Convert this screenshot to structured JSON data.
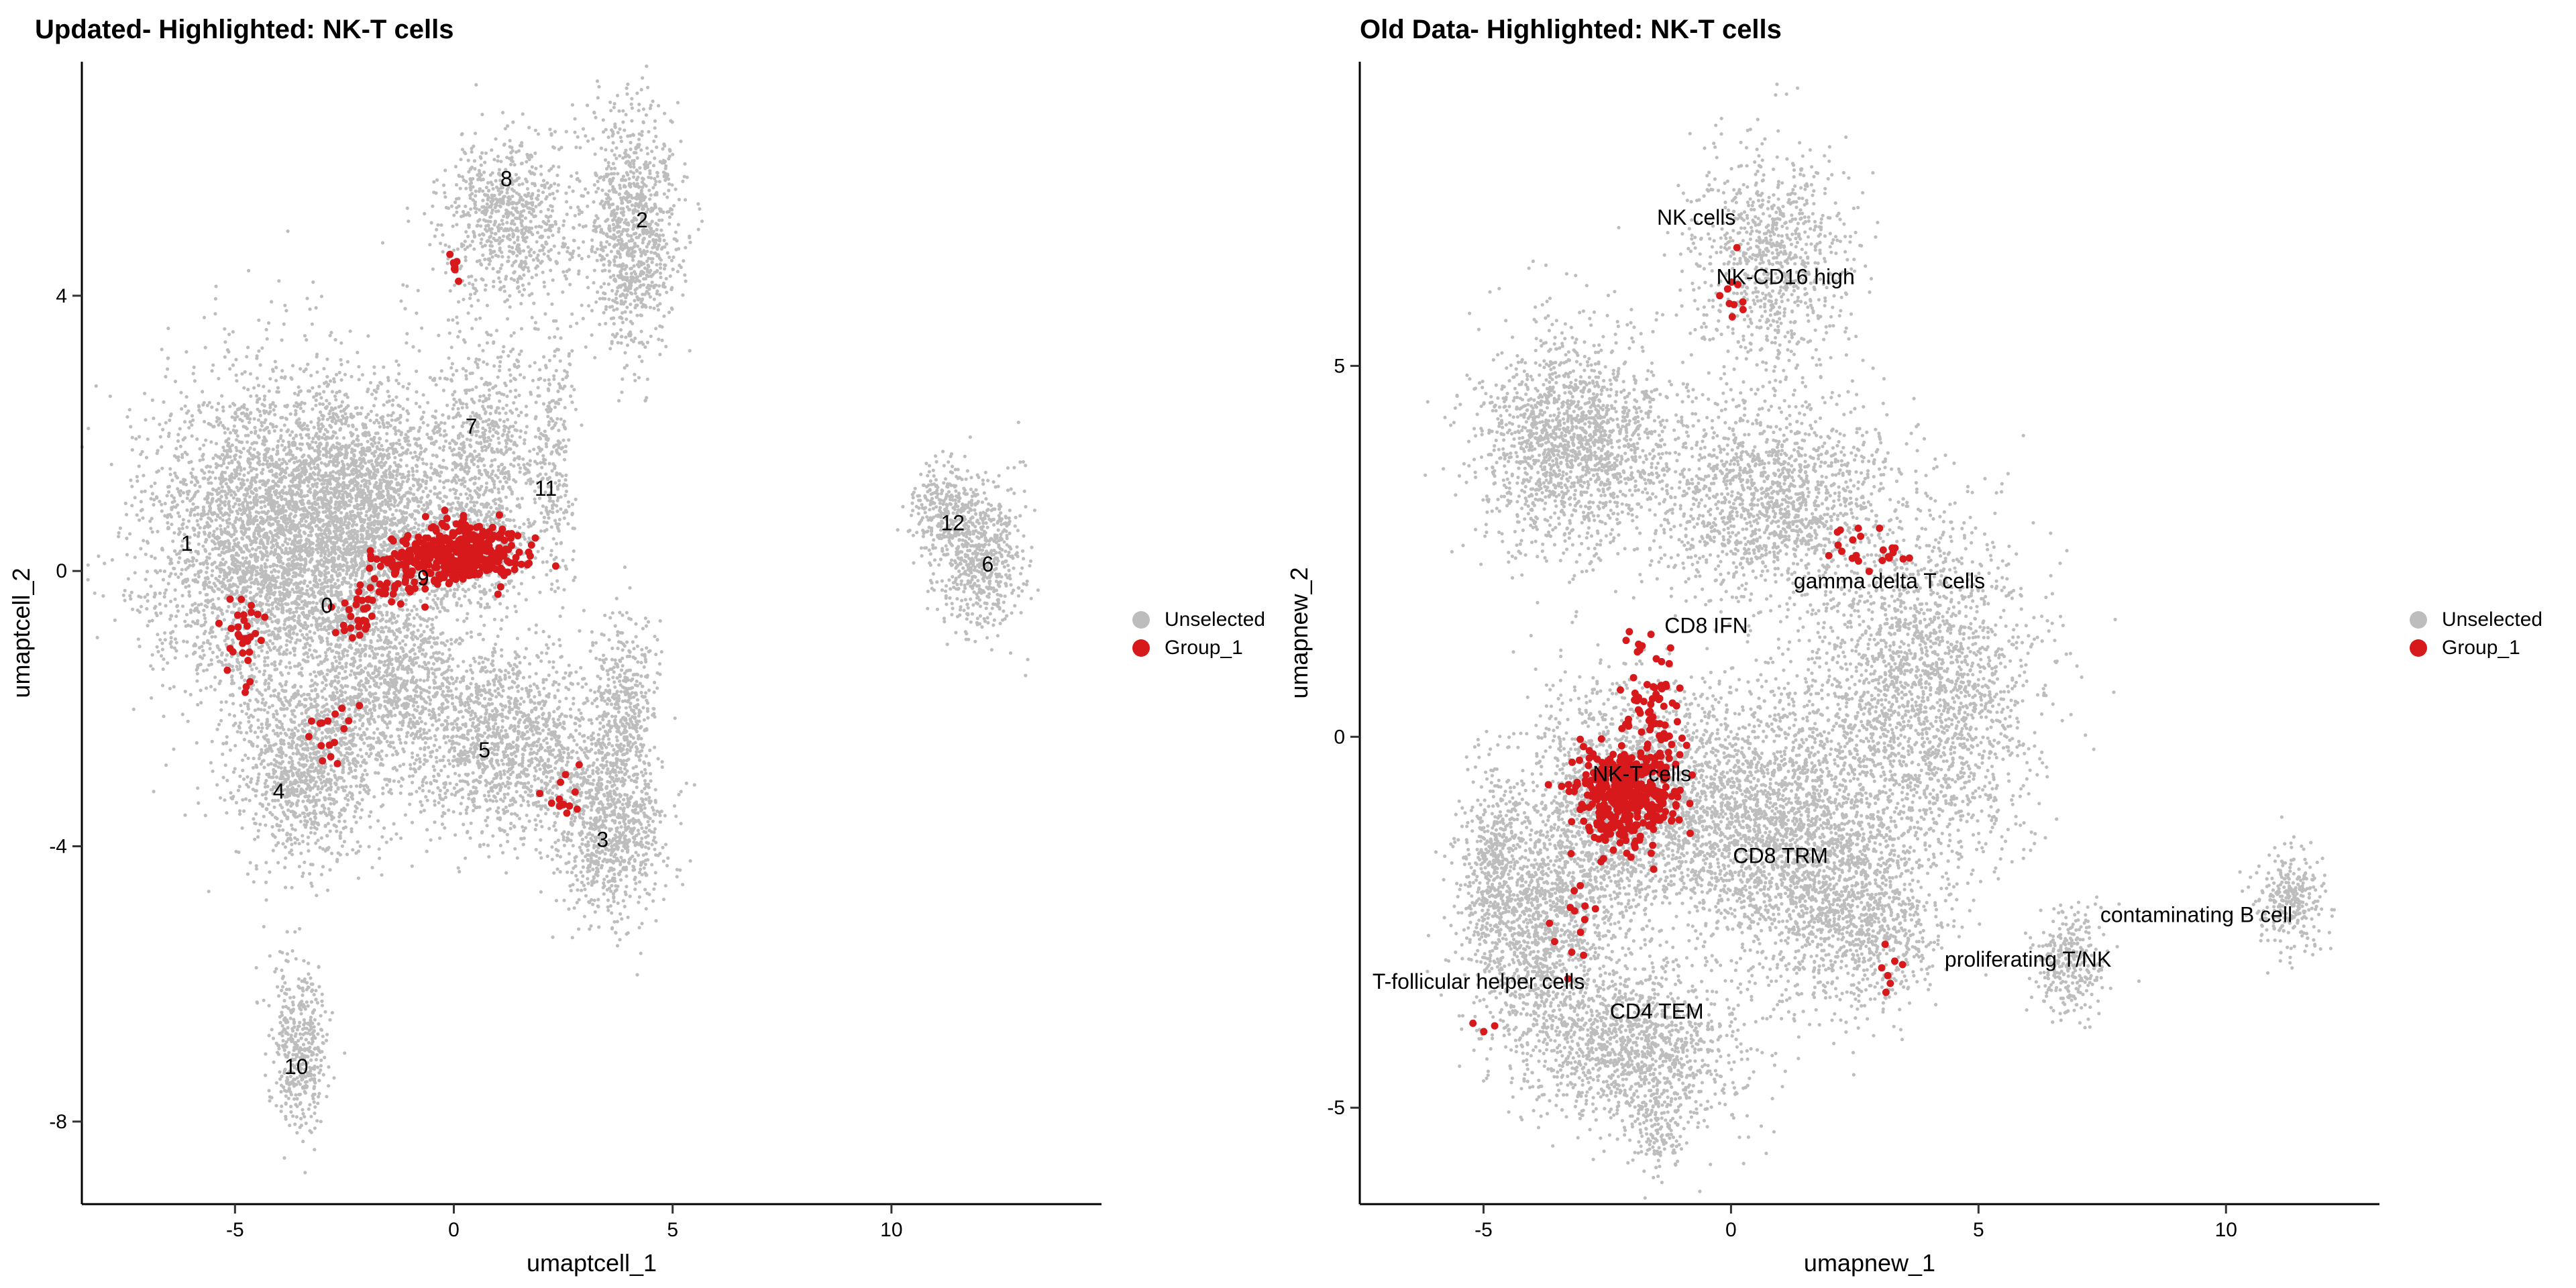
{
  "colors": {
    "unselected": "#bdbdbd",
    "group": "#d7191c",
    "axis": "#000000"
  },
  "chart_data": [
    {
      "type": "scatter",
      "title": "Updated- Highlighted: NK-T cells",
      "xlabel": "umaptcell_1",
      "ylabel": "umaptcell_2",
      "xlim": [
        -8.5,
        14.8
      ],
      "ylim": [
        -9.2,
        7.4
      ],
      "xticks": [
        -5,
        0,
        5,
        10
      ],
      "yticks": [
        -8,
        -4,
        0,
        4
      ],
      "legend": {
        "placement": "right",
        "entries": [
          "Unselected",
          "Group_1"
        ]
      },
      "grid": false,
      "cluster_labels": [
        {
          "text": "0",
          "x": -2.9,
          "y": -0.5
        },
        {
          "text": "1",
          "x": -6.1,
          "y": 0.4
        },
        {
          "text": "2",
          "x": 4.3,
          "y": 5.1
        },
        {
          "text": "3",
          "x": 3.4,
          "y": -3.9
        },
        {
          "text": "4",
          "x": -4.0,
          "y": -3.2
        },
        {
          "text": "5",
          "x": 0.7,
          "y": -2.6
        },
        {
          "text": "6",
          "x": 12.2,
          "y": 0.1
        },
        {
          "text": "7",
          "x": 0.4,
          "y": 2.1
        },
        {
          "text": "8",
          "x": 1.2,
          "y": 5.7
        },
        {
          "text": "9",
          "x": -0.7,
          "y": -0.1
        },
        {
          "text": "10",
          "x": -3.6,
          "y": -7.2
        },
        {
          "text": "11",
          "x": 2.1,
          "y": 1.2
        },
        {
          "text": "12",
          "x": 11.4,
          "y": 0.7
        }
      ],
      "unselected_regions": [
        {
          "cx": -4.2,
          "cy": 0.4,
          "sx": 1.8,
          "sy": 1.6,
          "n": 3600
        },
        {
          "cx": -2.0,
          "cy": 0.9,
          "sx": 1.4,
          "sy": 1.2,
          "n": 2000
        },
        {
          "cx": -3.4,
          "cy": -2.9,
          "sx": 1.1,
          "sy": 0.9,
          "n": 1100
        },
        {
          "cx": -1.5,
          "cy": -1.6,
          "sx": 1.2,
          "sy": 0.8,
          "n": 900
        },
        {
          "cx": 1.2,
          "cy": -2.5,
          "sx": 1.6,
          "sy": 0.9,
          "n": 1500
        },
        {
          "cx": 3.6,
          "cy": -3.7,
          "sx": 0.8,
          "sy": 0.9,
          "n": 900
        },
        {
          "cx": 3.9,
          "cy": -1.8,
          "sx": 0.5,
          "sy": 0.8,
          "n": 350
        },
        {
          "cx": 0.8,
          "cy": 1.9,
          "sx": 0.9,
          "sy": 1.1,
          "n": 650
        },
        {
          "cx": 1.3,
          "cy": 5.1,
          "sx": 1.0,
          "sy": 0.8,
          "n": 800
        },
        {
          "cx": 4.1,
          "cy": 5.0,
          "sx": 0.7,
          "sy": 1.2,
          "n": 1000
        },
        {
          "cx": 2.3,
          "cy": 1.6,
          "sx": 0.3,
          "sy": 1.3,
          "n": 220
        },
        {
          "cx": 0.4,
          "cy": 0.3,
          "sx": 1.0,
          "sy": 0.6,
          "n": 500
        },
        {
          "cx": -3.5,
          "cy": -6.9,
          "sx": 0.45,
          "sy": 0.8,
          "n": 450
        },
        {
          "cx": 12.0,
          "cy": 0.2,
          "sx": 0.7,
          "sy": 0.7,
          "n": 650
        },
        {
          "cx": 11.2,
          "cy": 0.9,
          "sx": 0.5,
          "sy": 0.4,
          "n": 220
        }
      ],
      "group_regions": [
        {
          "cx": 0.2,
          "cy": 0.25,
          "sx": 0.9,
          "sy": 0.3,
          "n": 380
        },
        {
          "cx": -1.2,
          "cy": 0.0,
          "sx": 0.6,
          "sy": 0.3,
          "n": 70
        },
        {
          "cx": -4.8,
          "cy": -0.9,
          "sx": 0.3,
          "sy": 0.45,
          "n": 32
        },
        {
          "cx": -2.2,
          "cy": -0.7,
          "sx": 0.35,
          "sy": 0.3,
          "n": 28
        },
        {
          "cx": -2.9,
          "cy": -2.4,
          "sx": 0.4,
          "sy": 0.35,
          "n": 16
        },
        {
          "cx": 2.6,
          "cy": -3.2,
          "sx": 0.5,
          "sy": 0.5,
          "n": 12
        },
        {
          "cx": 0.0,
          "cy": 4.4,
          "sx": 0.15,
          "sy": 0.25,
          "n": 8
        }
      ]
    },
    {
      "type": "scatter",
      "title": "Old Data- Highlighted: NK-T cells",
      "xlabel": "umapnew_1",
      "ylabel": "umapnew_2",
      "xlim": [
        -7.5,
        13.1
      ],
      "ylim": [
        -6.3,
        9.1
      ],
      "xticks": [
        -5,
        0,
        5,
        10
      ],
      "yticks": [
        -5,
        0,
        5
      ],
      "legend": {
        "placement": "right",
        "entries": [
          "Unselected",
          "Group_1"
        ]
      },
      "grid": false,
      "cluster_labels": [
        {
          "text": "NK cells",
          "x": -0.7,
          "y": 7.0
        },
        {
          "text": "NK-CD16 high",
          "x": 1.1,
          "y": 6.2
        },
        {
          "text": "gamma delta T cells",
          "x": 3.2,
          "y": 2.1
        },
        {
          "text": "CD8 IFN",
          "x": -0.5,
          "y": 1.5
        },
        {
          "text": "NK-T cells",
          "x": -1.8,
          "y": -0.5
        },
        {
          "text": "CD8 TRM",
          "x": 1.0,
          "y": -1.6
        },
        {
          "text": "contaminating  B cell",
          "x": 9.4,
          "y": -2.4
        },
        {
          "text": "proliferating T/NK",
          "x": 6.0,
          "y": -3.0
        },
        {
          "text": "T-follicular helper cells",
          "x": -5.1,
          "y": -3.3
        },
        {
          "text": "CD4 TEM",
          "x": -1.5,
          "y": -3.7
        }
      ],
      "unselected_regions": [
        {
          "cx": -3.2,
          "cy": 4.0,
          "sx": 1.3,
          "sy": 1.0,
          "n": 1700
        },
        {
          "cx": 0.8,
          "cy": 6.4,
          "sx": 1.1,
          "sy": 1.0,
          "n": 900
        },
        {
          "cx": 0.8,
          "cy": 3.2,
          "sx": 1.6,
          "sy": 0.9,
          "n": 1500
        },
        {
          "cx": 3.9,
          "cy": 0.6,
          "sx": 1.5,
          "sy": 1.6,
          "n": 2200
        },
        {
          "cx": 0.9,
          "cy": -1.2,
          "sx": 1.6,
          "sy": 1.2,
          "n": 2300
        },
        {
          "cx": -2.0,
          "cy": -0.9,
          "sx": 1.4,
          "sy": 1.1,
          "n": 1800
        },
        {
          "cx": -3.8,
          "cy": -2.5,
          "sx": 1.0,
          "sy": 1.2,
          "n": 1300
        },
        {
          "cx": -2.0,
          "cy": -4.2,
          "sx": 1.5,
          "sy": 0.7,
          "n": 1300
        },
        {
          "cx": 2.6,
          "cy": -2.5,
          "sx": 1.2,
          "sy": 0.8,
          "n": 900
        },
        {
          "cx": 6.8,
          "cy": -3.0,
          "sx": 0.5,
          "sy": 0.5,
          "n": 300
        },
        {
          "cx": 11.3,
          "cy": -2.2,
          "sx": 0.45,
          "sy": 0.45,
          "n": 300
        },
        {
          "cx": -4.8,
          "cy": -1.8,
          "sx": 0.4,
          "sy": 1.0,
          "n": 400
        },
        {
          "cx": -1.5,
          "cy": -5.3,
          "sx": 0.3,
          "sy": 0.4,
          "n": 120
        }
      ],
      "group_regions": [
        {
          "cx": -2.1,
          "cy": -0.8,
          "sx": 0.7,
          "sy": 0.45,
          "n": 430
        },
        {
          "cx": -1.6,
          "cy": 0.5,
          "sx": 0.4,
          "sy": 0.6,
          "n": 60
        },
        {
          "cx": 2.8,
          "cy": 2.5,
          "sx": 0.8,
          "sy": 0.3,
          "n": 22
        },
        {
          "cx": 0.1,
          "cy": 5.9,
          "sx": 0.2,
          "sy": 0.35,
          "n": 10
        },
        {
          "cx": -3.2,
          "cy": -2.6,
          "sx": 0.4,
          "sy": 0.6,
          "n": 12
        },
        {
          "cx": 3.2,
          "cy": -3.2,
          "sx": 0.3,
          "sy": 0.25,
          "n": 7
        },
        {
          "cx": -5.2,
          "cy": -3.9,
          "sx": 0.6,
          "sy": 0.1,
          "n": 3
        }
      ]
    }
  ]
}
